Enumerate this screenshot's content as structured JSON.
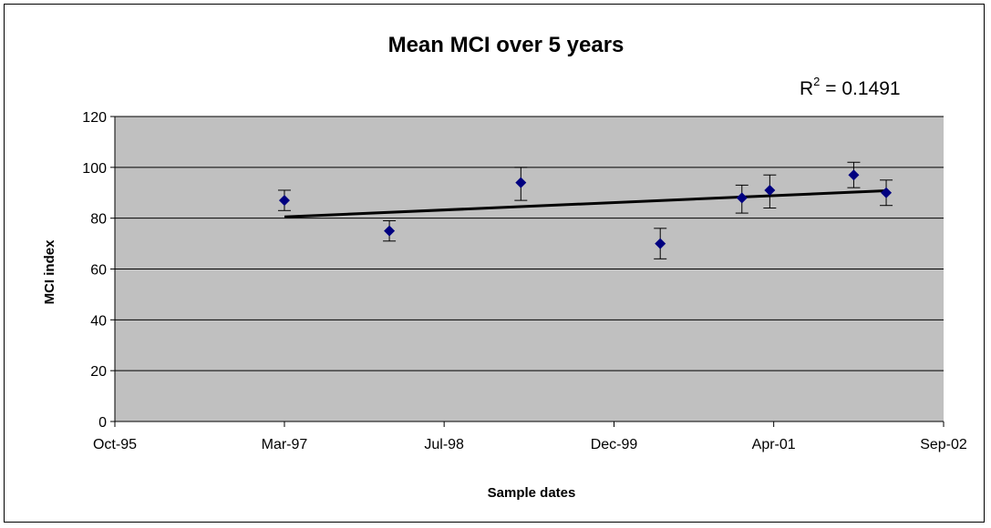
{
  "chart_data": {
    "type": "scatter",
    "title": "Mean MCI over 5 years",
    "xlabel": "Sample dates",
    "ylabel": "MCI index",
    "ylim": [
      0,
      120
    ],
    "yticks": [
      0,
      20,
      40,
      60,
      80,
      100,
      120
    ],
    "xlim": [
      "1995-10-01",
      "2002-09-01"
    ],
    "xticks": [
      {
        "date": "1995-10-01",
        "label": "Oct-95"
      },
      {
        "date": "1997-03-01",
        "label": "Mar-97"
      },
      {
        "date": "1998-07-01",
        "label": "Jul-98"
      },
      {
        "date": "1999-12-01",
        "label": "Dec-99"
      },
      {
        "date": "2001-04-01",
        "label": "Apr-01"
      },
      {
        "date": "2002-09-01",
        "label": "Sep-02"
      }
    ],
    "grid": "horizontal",
    "plot_background": "#C0C0C0",
    "marker_color": "#000080",
    "points": [
      {
        "x": "1997-03-01",
        "y": 87,
        "err_low": 83,
        "err_high": 91
      },
      {
        "x": "1998-01-15",
        "y": 75,
        "err_low": 71,
        "err_high": 79
      },
      {
        "x": "1999-02-20",
        "y": 94,
        "err_low": 87,
        "err_high": 100
      },
      {
        "x": "2000-04-20",
        "y": 70,
        "err_low": 64,
        "err_high": 76
      },
      {
        "x": "2000-12-25",
        "y": 88,
        "err_low": 82,
        "err_high": 93
      },
      {
        "x": "2001-03-20",
        "y": 91,
        "err_low": 84,
        "err_high": 97
      },
      {
        "x": "2001-12-01",
        "y": 97,
        "err_low": 92,
        "err_high": 102
      },
      {
        "x": "2002-03-10",
        "y": 90,
        "err_low": 85,
        "err_high": 95
      }
    ],
    "trendline": {
      "type": "linear",
      "from": {
        "x": "1997-03-01",
        "y": 80.5
      },
      "to": {
        "x": "2002-03-10",
        "y": 90.8
      },
      "r2_label": "R",
      "r2_superscript": "2",
      "r2_value": " = 0.1491"
    }
  }
}
